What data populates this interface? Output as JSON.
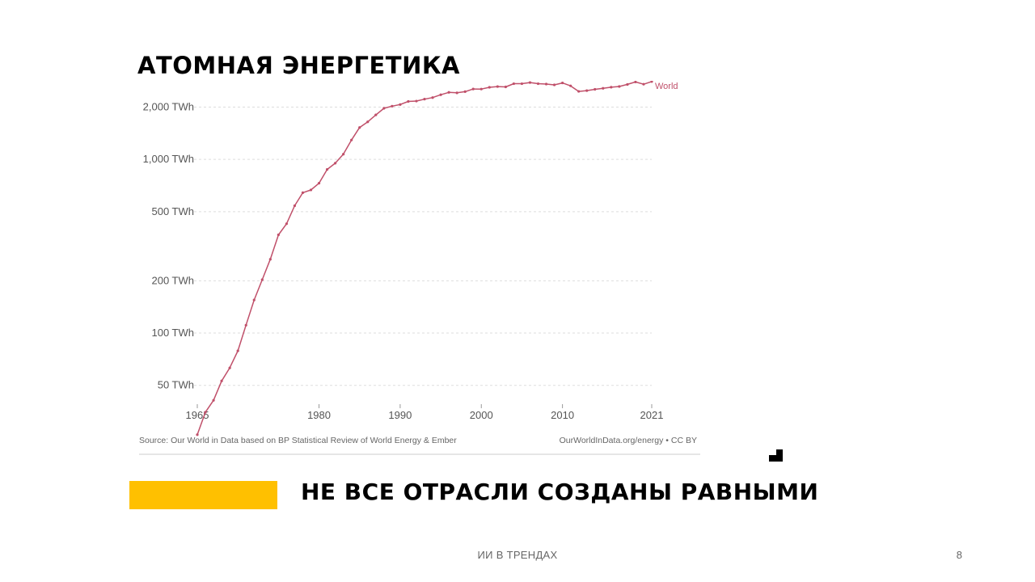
{
  "slide": {
    "title": "АТОМНАЯ ЭНЕРГЕТИКА",
    "subtitle": "НЕ ВСЕ ОТРАСЛИ СОЗДАНЫ РАВНЫМИ",
    "footer": "ИИ В ТРЕНДАХ",
    "page_number": "8",
    "accent_color": "#FFC000"
  },
  "chart_data": {
    "type": "line",
    "y_scale": "log",
    "ylim": [
      35,
      2600
    ],
    "xlim": [
      1965,
      2021
    ],
    "yticks": [
      {
        "value": 50,
        "label": "50 TWh"
      },
      {
        "value": 100,
        "label": "100 TWh"
      },
      {
        "value": 200,
        "label": "200 TWh"
      },
      {
        "value": 500,
        "label": "500 TWh"
      },
      {
        "value": 1000,
        "label": "1,000 TWh"
      },
      {
        "value": 2000,
        "label": "2,000 TWh"
      }
    ],
    "xticks": [
      {
        "value": 1965,
        "label": "1965"
      },
      {
        "value": 1980,
        "label": "1980"
      },
      {
        "value": 1990,
        "label": "1990"
      },
      {
        "value": 2000,
        "label": "2000"
      },
      {
        "value": 2010,
        "label": "2010"
      },
      {
        "value": 2021,
        "label": "2021"
      }
    ],
    "grid": true,
    "series": [
      {
        "name": "World",
        "color": "#C0506A",
        "x": [
          1965,
          1966,
          1967,
          1968,
          1969,
          1970,
          1971,
          1972,
          1973,
          1974,
          1975,
          1976,
          1977,
          1978,
          1979,
          1980,
          1981,
          1982,
          1983,
          1984,
          1985,
          1986,
          1987,
          1988,
          1989,
          1990,
          1991,
          1992,
          1993,
          1994,
          1995,
          1996,
          1997,
          1998,
          1999,
          2000,
          2001,
          2002,
          2003,
          2004,
          2005,
          2006,
          2007,
          2008,
          2009,
          2010,
          2011,
          2012,
          2013,
          2014,
          2015,
          2016,
          2017,
          2018,
          2019,
          2020,
          2021
        ],
        "values": [
          26,
          35,
          41,
          53,
          63,
          79,
          111,
          155,
          203,
          266,
          368,
          426,
          541,
          643,
          667,
          729,
          875,
          951,
          1071,
          1293,
          1526,
          1645,
          1803,
          1968,
          2025,
          2069,
          2155,
          2166,
          2222,
          2268,
          2355,
          2431,
          2416,
          2455,
          2542,
          2540,
          2601,
          2626,
          2615,
          2727,
          2727,
          2769,
          2727,
          2714,
          2686,
          2756,
          2651,
          2463,
          2488,
          2532,
          2565,
          2604,
          2629,
          2701,
          2791,
          2709,
          2806
        ]
      }
    ],
    "source": "Source: Our World in Data based on BP Statistical Review of World Energy & Ember",
    "credit": "OurWorldInData.org/energy • CC BY"
  }
}
